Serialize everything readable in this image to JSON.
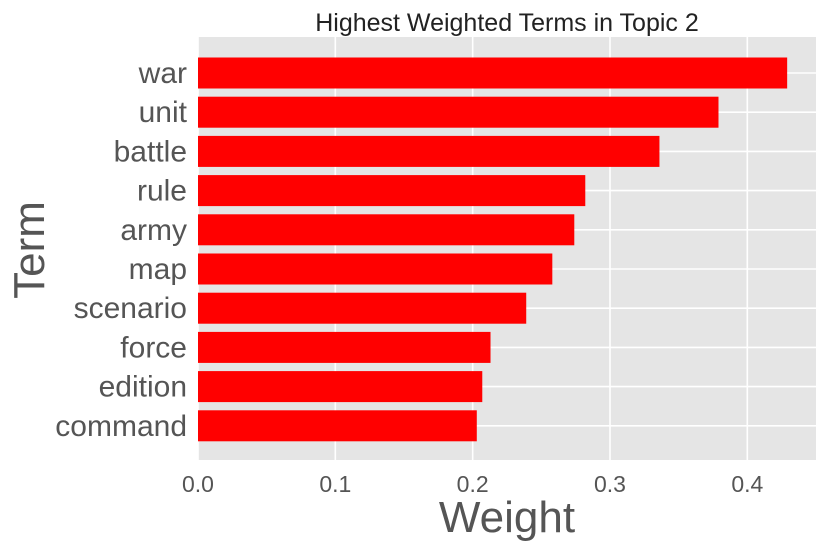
{
  "chart_data": {
    "type": "bar",
    "orientation": "horizontal",
    "title": "Highest Weighted Terms in Topic 2",
    "xlabel": "Weight",
    "ylabel": "Term",
    "categories": [
      "war",
      "unit",
      "battle",
      "rule",
      "army",
      "map",
      "scenario",
      "force",
      "edition",
      "command"
    ],
    "values": [
      0.429,
      0.379,
      0.336,
      0.282,
      0.274,
      0.258,
      0.239,
      0.213,
      0.207,
      0.203
    ],
    "xlim": [
      0.0,
      0.45
    ],
    "xticks": [
      "0.0",
      "0.1",
      "0.2",
      "0.3",
      "0.4"
    ],
    "grid": true,
    "colors": {
      "bar": "#ff0000",
      "plot_background": "#e5e5e5",
      "grid": "#ffffff",
      "text": "#555555",
      "title": "#222222"
    }
  }
}
